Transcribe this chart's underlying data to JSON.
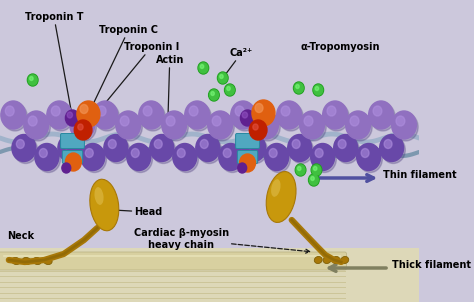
{
  "bg_color": "#ccc8dc",
  "bg_bottom_color": "#ddd8b8",
  "labels": {
    "troponin_t": "Troponin T",
    "troponin_c": "Troponin C",
    "troponin_i": "Troponin I",
    "actin": "Actin",
    "ca2": "Ca²⁺",
    "alpha_tropomyosin": "α-Tropomyosin",
    "head": "Head",
    "neck": "Neck",
    "cardiac_myosin": "Cardiac β-myosin\nheavy chain",
    "thin_filament": "Thin filament",
    "thick_filament": "Thick filament"
  },
  "colors": {
    "actin_ball": "#9070c0",
    "actin_ball_light": "#b090e0",
    "actin_ball_dark": "#6848a8",
    "actin_shadow": "#504080",
    "tropomyosin_strand1": "#9ab0c8",
    "tropomyosin_strand2": "#7090a8",
    "troponin_t_purple": "#602090",
    "troponin_c_orange": "#e06010",
    "troponin_c_highlight": "#f09050",
    "troponin_i_red": "#c02000",
    "troponin_connector": "#50a8c0",
    "ca2_green": "#40c040",
    "ca2_outline": "#20a020",
    "myosin_head_gold": "#c8980c",
    "myosin_head_light": "#e0c050",
    "myosin_neck_gold": "#a87808",
    "myosin_neck_dark": "#806006",
    "thick_bar_light": "#d8d0a0",
    "thick_bar_dark": "#b8b080",
    "thick_bar_stripe": "#c8c090",
    "annotation_line": "#1a1a1a",
    "thin_arrow": "#5050a0",
    "thick_arrow": "#808060"
  }
}
